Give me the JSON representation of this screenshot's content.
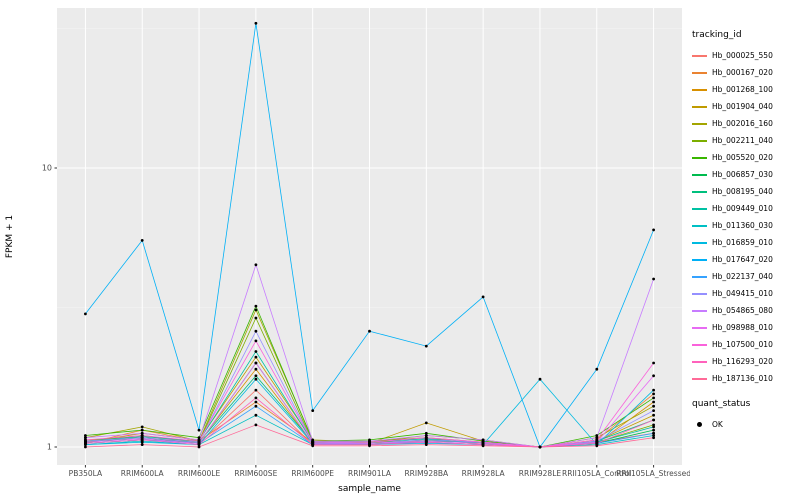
{
  "panel": {
    "background": "#EBEBEB",
    "gridline_color": "#FFFFFF",
    "minor_gridline_color": "#F5F5F5",
    "tick_text_color": "#4D4D4D",
    "point_color": "#000000"
  },
  "chart_data": {
    "type": "line",
    "title": "",
    "xlabel": "sample_name",
    "ylabel": "FPKM + 1",
    "y_scale": "log10",
    "y_ticks": [
      1,
      10
    ],
    "ylim": [
      0.93,
      37
    ],
    "grid": true,
    "legend_position": "right",
    "legend_title": "tracking_id",
    "quant_legend": {
      "title": "quant_status",
      "items": [
        "OK"
      ]
    },
    "categories": [
      "PB350LA",
      "RRIM600LA",
      "RRIM600LE",
      "RRIM600SE",
      "RRIM600PE",
      "RRIM901LA",
      "RRIM928BA",
      "RRIM928LA",
      "RRIM928LE",
      "RRII105LA_Control",
      "RRII105LA_Stressed"
    ],
    "series": [
      {
        "name": "Hb_000025_550",
        "color": "#F8766D",
        "values": [
          1.05,
          1.1,
          1.03,
          1.6,
          1.02,
          1.03,
          1.08,
          1.02,
          1.0,
          1.04,
          1.12
        ]
      },
      {
        "name": "Hb_000167_020",
        "color": "#EA8331",
        "values": [
          1.03,
          1.15,
          1.05,
          1.45,
          1.04,
          1.02,
          1.06,
          1.03,
          1.0,
          1.06,
          1.55
        ]
      },
      {
        "name": "Hb_001268_100",
        "color": "#D89000",
        "values": [
          1.06,
          1.08,
          1.04,
          1.9,
          1.03,
          1.04,
          1.05,
          1.04,
          1.0,
          1.03,
          1.45
        ]
      },
      {
        "name": "Hb_001904_040",
        "color": "#C09B00",
        "values": [
          1.04,
          1.12,
          1.06,
          2.1,
          1.05,
          1.03,
          1.22,
          1.05,
          1.0,
          1.05,
          1.3
        ]
      },
      {
        "name": "Hb_002016_160",
        "color": "#A3A500",
        "values": [
          1.08,
          1.18,
          1.05,
          3.1,
          1.06,
          1.04,
          1.1,
          1.06,
          1.0,
          1.08,
          1.4
        ]
      },
      {
        "name": "Hb_002211_040",
        "color": "#7CAE00",
        "values": [
          1.05,
          1.1,
          1.04,
          2.9,
          1.04,
          1.05,
          1.08,
          1.04,
          1.0,
          1.04,
          1.2
        ]
      },
      {
        "name": "Hb_005520_020",
        "color": "#39B600",
        "values": [
          1.1,
          1.15,
          1.08,
          3.2,
          1.05,
          1.06,
          1.12,
          1.05,
          1.0,
          1.1,
          1.5
        ]
      },
      {
        "name": "Hb_006857_030",
        "color": "#00BB4E",
        "values": [
          1.04,
          1.08,
          1.03,
          2.0,
          1.03,
          1.03,
          1.06,
          1.03,
          1.0,
          1.03,
          1.15
        ]
      },
      {
        "name": "Hb_008195_040",
        "color": "#00BF7D",
        "values": [
          1.03,
          1.06,
          1.04,
          1.8,
          1.04,
          1.02,
          1.05,
          1.04,
          1.0,
          1.05,
          1.25
        ]
      },
      {
        "name": "Hb_009449_010",
        "color": "#00C1A3",
        "values": [
          1.05,
          1.09,
          1.05,
          2.2,
          1.04,
          1.04,
          1.07,
          1.03,
          1.0,
          1.04,
          1.18
        ]
      },
      {
        "name": "Hb_011360_030",
        "color": "#00BFC4",
        "values": [
          1.02,
          1.05,
          1.02,
          1.3,
          1.02,
          1.02,
          1.04,
          1.02,
          1.0,
          1.02,
          1.1
        ]
      },
      {
        "name": "Hb_016859_010",
        "color": "#00BAE0",
        "values": [
          1.02,
          1.04,
          1.02,
          1.75,
          1.03,
          1.02,
          1.03,
          1.02,
          1.75,
          1.02,
          1.6
        ]
      },
      {
        "name": "Hb_017647_020",
        "color": "#00B0F6",
        "values": [
          3.0,
          5.5,
          1.15,
          33.0,
          1.35,
          2.6,
          2.3,
          3.45,
          1.0,
          1.9,
          6.0
        ]
      },
      {
        "name": "Hb_022137_040",
        "color": "#35A2FF",
        "values": [
          1.03,
          1.06,
          1.03,
          1.4,
          1.02,
          1.03,
          1.04,
          1.02,
          1.0,
          1.03,
          1.12
        ]
      },
      {
        "name": "Hb_049415_010",
        "color": "#9590FF",
        "values": [
          1.05,
          1.08,
          1.04,
          2.6,
          1.04,
          1.03,
          1.06,
          1.04,
          1.0,
          1.05,
          1.35
        ]
      },
      {
        "name": "Hb_054865_080",
        "color": "#C77CFF",
        "values": [
          1.08,
          1.12,
          1.06,
          4.5,
          1.05,
          1.05,
          1.1,
          1.06,
          1.0,
          1.08,
          4.0
        ]
      },
      {
        "name": "Hb_098988_010",
        "color": "#E76BF3",
        "values": [
          1.04,
          1.07,
          1.03,
          2.0,
          1.03,
          1.03,
          1.05,
          1.03,
          1.0,
          1.04,
          1.8
        ]
      },
      {
        "name": "Hb_107500_010",
        "color": "#FA62DB",
        "values": [
          1.06,
          1.1,
          1.05,
          2.4,
          1.04,
          1.04,
          1.08,
          1.04,
          1.0,
          1.06,
          2.0
        ]
      },
      {
        "name": "Hb_116293_020",
        "color": "#FF62BC",
        "values": [
          1.03,
          1.06,
          1.02,
          1.5,
          1.02,
          1.02,
          1.04,
          1.02,
          1.0,
          1.03,
          1.25
        ]
      },
      {
        "name": "Hb_187136_010",
        "color": "#FF6A98",
        "values": [
          1.0,
          1.02,
          1.0,
          1.2,
          1.01,
          1.01,
          1.02,
          1.01,
          1.0,
          1.01,
          1.08
        ]
      }
    ]
  }
}
